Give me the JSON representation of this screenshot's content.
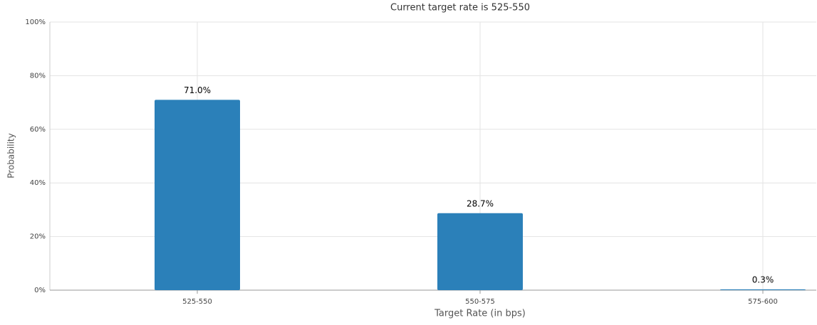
{
  "chart_data": {
    "type": "bar",
    "title": "Current target rate is 525-550",
    "x_label": "Target Rate (in bps)",
    "y_label": "Probability",
    "categories": [
      "525-550",
      "550-575",
      "575-600"
    ],
    "values": [
      71.0,
      28.7,
      0.3
    ],
    "value_labels": [
      "71.0%",
      "28.7%",
      "0.3%"
    ],
    "color": "#2b80b9",
    "ylim": [
      0,
      100
    ],
    "yticks": [
      {
        "value": 0,
        "label": "0%"
      },
      {
        "value": 20,
        "label": "20%"
      },
      {
        "value": 40,
        "label": "40%"
      },
      {
        "value": 60,
        "label": "60%"
      },
      {
        "value": 80,
        "label": "80%"
      },
      {
        "value": 100,
        "label": "100%"
      }
    ],
    "grid": true
  }
}
